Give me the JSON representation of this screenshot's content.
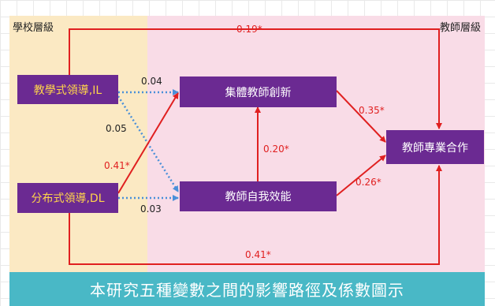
{
  "levels": {
    "school": "學校層級",
    "teacher": "教師層級"
  },
  "nodes": {
    "il": "教學式領導,IL",
    "dl": "分布式領導,DL",
    "ci": "集體教師創新",
    "se": "教師自我效能",
    "pc": "教師專業合作"
  },
  "coefficients": {
    "il_pc": "0.19*",
    "il_ci": "0.04",
    "il_se": "0.05",
    "dl_ci": "0.41*",
    "dl_se": "0.03",
    "se_ci": "0.20*",
    "ci_pc": "0.35*",
    "se_pc": "0.26*",
    "dl_pc": "0.41*"
  },
  "caption": "本研究五種變數之間的影響路徑及係數圖示",
  "colors": {
    "significant_path": "#e02020",
    "nonsignificant_path": "#4a90d9",
    "node_fill": "#6b2a92",
    "school_panel": "#fbe9c3",
    "teacher_panel": "#f9dce7"
  }
}
